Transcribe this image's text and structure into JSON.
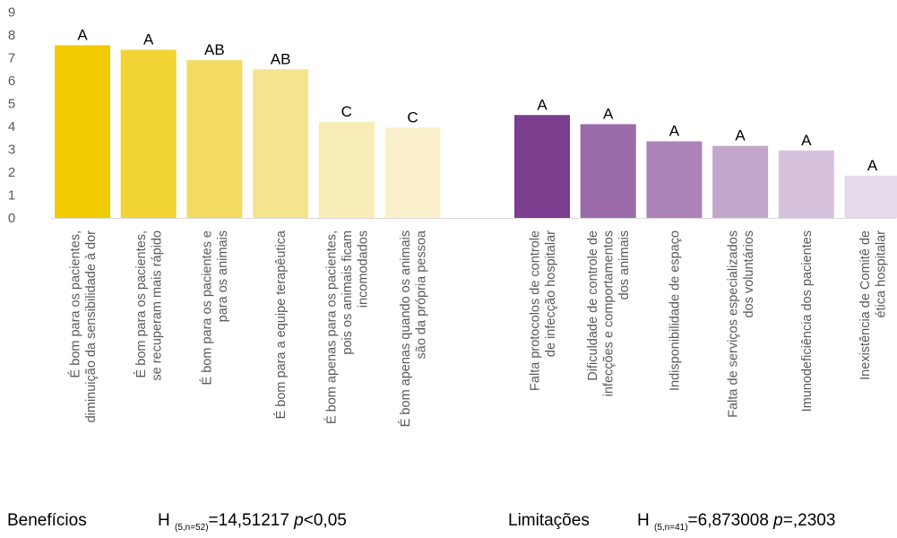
{
  "chart_data": {
    "type": "bar",
    "ylim": [
      0,
      9
    ],
    "yticks": [
      0,
      1,
      2,
      3,
      4,
      5,
      6,
      7,
      8,
      9
    ],
    "grid": false,
    "groups": [
      {
        "name": "Benefícios",
        "categories": [
          [
            "É bom para os pacientes,",
            "diminuição da sensibilidade à dor"
          ],
          [
            "É bom para os pacientes,",
            "se recuperam mais rápido"
          ],
          [
            "É bom para os pacientes e",
            "para os animais"
          ],
          [
            "É bom para a equipe terapêutica"
          ],
          [
            "É bom apenas para os pacientes,",
            "pois os animais ficam",
            "incomodados"
          ],
          [
            "É bom apenas quando os animais",
            "são da própria pessoa"
          ]
        ],
        "values": [
          7.55,
          7.35,
          6.9,
          6.5,
          4.2,
          3.95
        ],
        "letters": [
          "A",
          "A",
          "AB",
          "AB",
          "C",
          "C"
        ],
        "colors": [
          "#F2CA00",
          "#F1D334",
          "#F3DB62",
          "#F4E48E",
          "#F8EDB6",
          "#FAF1CC"
        ]
      },
      {
        "name": "Limitações",
        "categories": [
          [
            "Falta protocolos de controle",
            "de infecção hospitalar"
          ],
          [
            "Dificuldade de controle de",
            "infecções e comportamentos",
            "dos animais"
          ],
          [
            "Indisponibilidade de espaço"
          ],
          [
            "Falta de serviços especializados",
            "dos voluntários"
          ],
          [
            "Imunodeficiência dos pacientes"
          ],
          [
            "Inexistência de Comitê de",
            "ética hospitalar"
          ]
        ],
        "values": [
          4.5,
          4.1,
          3.35,
          3.15,
          2.95,
          1.85
        ],
        "letters": [
          "A",
          "A",
          "A",
          "A",
          "A",
          "A"
        ],
        "colors": [
          "#7B3D8D",
          "#9A6AA9",
          "#AC84BA",
          "#C3A6CB",
          "#D7C2DD",
          "#E6DAEA"
        ]
      }
    ]
  },
  "footer": {
    "left_label": "Benefícios",
    "left_h": "H",
    "left_sub": "(5,n=52)",
    "left_stat": "=14,51217",
    "left_p": "p",
    "left_pval": "<0,05",
    "right_label": "Limitações",
    "right_h": "H",
    "right_sub": "(5,n=41)",
    "right_stat": "=6,873008",
    "right_p": "p",
    "right_pval": "=,2303"
  }
}
